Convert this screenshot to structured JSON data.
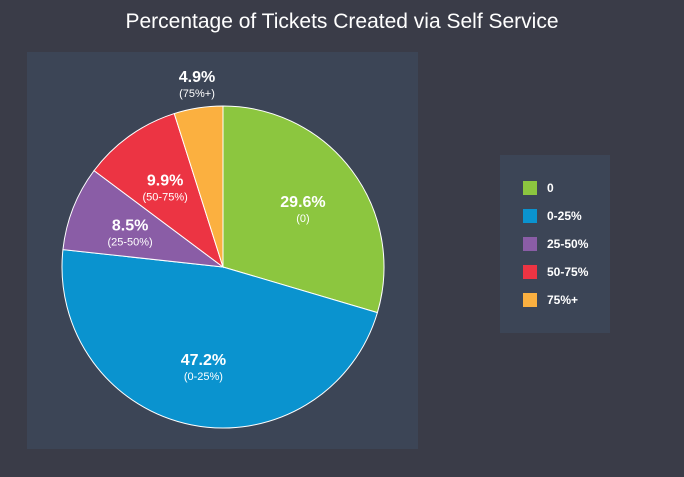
{
  "chart_data": {
    "type": "pie",
    "title": "Percentage of Tickets Created via Self Service",
    "slices": [
      {
        "category": "0",
        "value": 29.6,
        "percent_label": "29.6%",
        "sub_label": "(0)",
        "color": "#8cc63f"
      },
      {
        "category": "0-25%",
        "value": 47.2,
        "percent_label": "47.2%",
        "sub_label": "(0-25%)",
        "color": "#0a93cf"
      },
      {
        "category": "25-50%",
        "value": 8.5,
        "percent_label": "8.5%",
        "sub_label": "(25-50%)",
        "color": "#8a5da6"
      },
      {
        "category": "50-75%",
        "value": 9.9,
        "percent_label": "9.9%",
        "sub_label": "(50-75%)",
        "color": "#ec3443"
      },
      {
        "category": "75%+",
        "value": 4.9,
        "percent_label": "4.9%",
        "sub_label": "(75%+)",
        "color": "#fbb040"
      }
    ],
    "legend": {
      "placement": "right",
      "entries": [
        "0",
        "0-25%",
        "25-50%",
        "50-75%",
        "75%+"
      ]
    }
  }
}
